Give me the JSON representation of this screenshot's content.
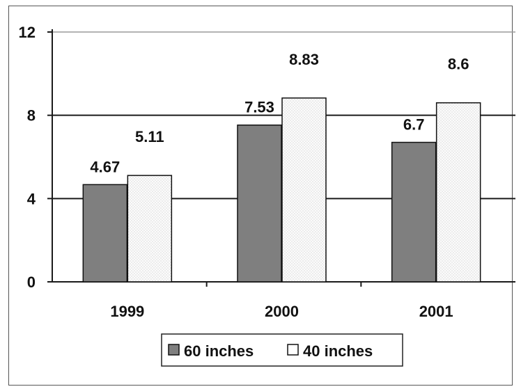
{
  "chart_data": {
    "type": "bar",
    "title": "",
    "xlabel": "",
    "ylabel": "",
    "categories": [
      "1999",
      "2000",
      "2001"
    ],
    "series": [
      {
        "name": "60 inches",
        "values": [
          4.67,
          7.53,
          6.7
        ],
        "color": "#7f7f7f",
        "labels": [
          "4.67",
          "7.53",
          "6.7"
        ]
      },
      {
        "name": "40 inches",
        "values": [
          5.11,
          8.83,
          8.6
        ],
        "color": "#f7f7f7",
        "labels": [
          "5.11",
          "8.83",
          "8.6"
        ]
      }
    ],
    "ylim": [
      0,
      12
    ],
    "yticks": [
      0,
      4,
      8,
      12
    ],
    "ytick_labels": [
      "0",
      "4",
      "8",
      "12"
    ],
    "grid": true,
    "legend": "bottom-center"
  }
}
